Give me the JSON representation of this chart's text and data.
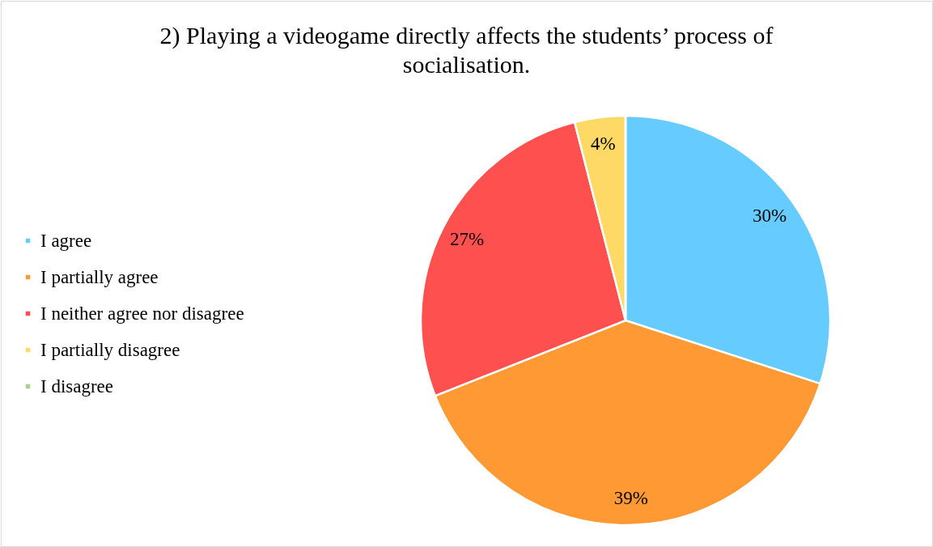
{
  "chart_data": {
    "type": "pie",
    "title": "2) Playing a videogame directly affects the students’ process of socialisation.",
    "categories": [
      "I agree",
      "I partially agree",
      "I neither agree nor disagree",
      "I partially disagree",
      "I disagree"
    ],
    "values": [
      30,
      39,
      27,
      4,
      0
    ],
    "colors": [
      "#66ccff",
      "#ff9933",
      "#ff5050",
      "#ffd966",
      "#a9d18e"
    ],
    "value_labels": [
      "30%",
      "39%",
      "27%",
      "4%",
      null
    ],
    "legend": "left"
  }
}
